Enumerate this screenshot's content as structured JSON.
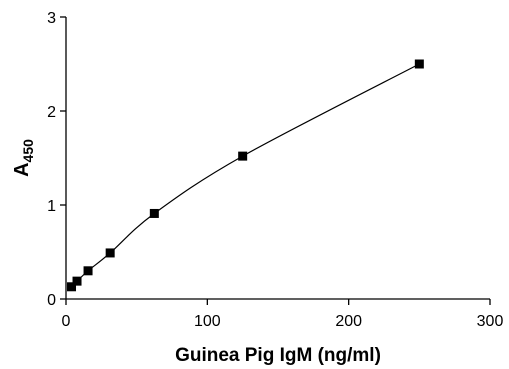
{
  "chart_data": {
    "type": "scatter",
    "title": "",
    "xlabel": "Guinea Pig IgM (ng/ml)",
    "ylabel_main": "A",
    "ylabel_sub": "450",
    "xlim": [
      0,
      300
    ],
    "ylim": [
      0,
      3
    ],
    "xticks": [
      0,
      100,
      200,
      300
    ],
    "yticks": [
      0,
      1,
      2,
      3
    ],
    "grid": false,
    "legend": "none",
    "series": [
      {
        "x": [
          3.9,
          7.8,
          15.6,
          31.25,
          62.5,
          125,
          250
        ],
        "y": [
          0.13,
          0.19,
          0.3,
          0.49,
          0.91,
          1.52,
          2.5
        ]
      }
    ],
    "fit_curve": {
      "x": [
        3.9,
        7.8,
        15.6,
        31.25,
        62.5,
        125,
        250
      ],
      "y": [
        0.13,
        0.19,
        0.3,
        0.49,
        0.91,
        1.52,
        2.5
      ]
    }
  }
}
